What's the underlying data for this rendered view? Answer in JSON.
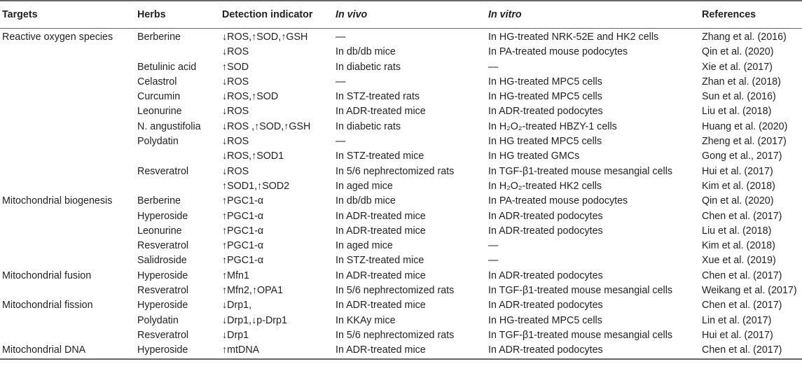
{
  "headers": [
    "Targets",
    "Herbs",
    "Detection indicator",
    "In vivo",
    "In vitro",
    "References"
  ],
  "rows": [
    [
      "Reactive oxygen species",
      "Berberine",
      "↓ROS,↑SOD,↑GSH",
      "—",
      "In HG-treated NRK-52E and HK2 cells",
      "Zhang et al. (2016)"
    ],
    [
      "",
      "",
      "↓ROS",
      "In db/db mice",
      "In PA-treated mouse podocytes",
      "Qin et al. (2020)"
    ],
    [
      "",
      "Betulinic acid",
      "↑SOD",
      "In diabetic rats",
      "—",
      "Xie et al. (2017)"
    ],
    [
      "",
      "Celastrol",
      "↓ROS",
      "—",
      "In HG-treated MPC5 cells",
      "Zhan et al. (2018)"
    ],
    [
      "",
      "Curcumin",
      "↓ROS,↑SOD",
      "In STZ-treated rats",
      "In HG-treated MPC5 cells",
      "Sun et al. (2016)"
    ],
    [
      "",
      "Leonurine",
      "↓ROS",
      "In ADR-treated mice",
      "In ADR-treated podocytes",
      "Liu et al. (2018)"
    ],
    [
      "",
      "N. angustifolia",
      "↓ROS ,↑SOD,↑GSH",
      "In diabetic rats",
      "In H₂O₂-treated HBZY-1 cells",
      "Huang et al. (2020)"
    ],
    [
      "",
      "Polydatin",
      "↓ROS",
      "—",
      "In HG treated MPC5 cells",
      "Zheng et al. (2017)"
    ],
    [
      "",
      "",
      "↓ROS,↑SOD1",
      "In STZ-treated mice",
      "In HG treated GMCs",
      "Gong et al., 2017)"
    ],
    [
      "",
      "Resveratrol",
      "↓ROS",
      "In 5/6 nephrectomized rats",
      "In TGF-β1-treated mouse mesangial cells",
      "Hui et al. (2017)"
    ],
    [
      "",
      "",
      "↑SOD1,↑SOD2",
      "In aged mice",
      "In H₂O₂-treated HK2 cells",
      "Kim et al. (2018)"
    ],
    [
      "Mitochondrial biogenesis",
      "Berberine",
      "↑PGC1-α",
      "In db/db mice",
      "In PA-treated mouse podocytes",
      "Qin et al. (2020)"
    ],
    [
      "",
      "Hyperoside",
      "↑PGC1-α",
      "In ADR-treated mice",
      "In ADR-treated podocytes",
      "Chen et al. (2017)"
    ],
    [
      "",
      "Leonurine",
      "↑PGC1-α",
      "In ADR-treated mice",
      "In ADR-treated podocytes",
      "Liu et al. (2018)"
    ],
    [
      "",
      "Resveratrol",
      "↑PGC1-α",
      "In aged mice",
      "—",
      "Kim et al. (2018)"
    ],
    [
      "",
      "Salidroside",
      "↑PGC1-α",
      "In STZ-treated mice",
      "—",
      "Xue et al. (2019)"
    ],
    [
      "Mitochondrial fusion",
      "Hyperoside",
      "↑Mfn1",
      "In ADR-treated mice",
      "In ADR-treated podocytes",
      "Chen et al. (2017)"
    ],
    [
      "",
      "Resveratrol",
      "↑Mfn2,↑OPA1",
      "In 5/6 nephrectomized rats",
      "In TGF-β1-treated mouse mesangial cells",
      "Weikang et al. (2017)"
    ],
    [
      "Mitochondrial fission",
      "Hyperoside",
      "↓Drp1,",
      "In ADR-treated mice",
      "In ADR-treated podocytes",
      "Chen et al. (2017)"
    ],
    [
      "",
      "Polydatin",
      "↓Drp1,↓p-Drp1",
      "In KKAy mice",
      "In HG-treated MPC5 cells",
      "Lin et al. (2017)"
    ],
    [
      "",
      "Resveratrol",
      "↓Drp1",
      "In 5/6 nephrectomized rats",
      "In TGF-β1-treated mouse mesangial cells",
      "Hui et al. (2017)"
    ],
    [
      "Mitochondrial DNA",
      "Hyperoside",
      "↑mtDNA",
      "In ADR-treated mice",
      "In ADR-treated podocytes",
      "Chen et al. (2017)"
    ]
  ]
}
